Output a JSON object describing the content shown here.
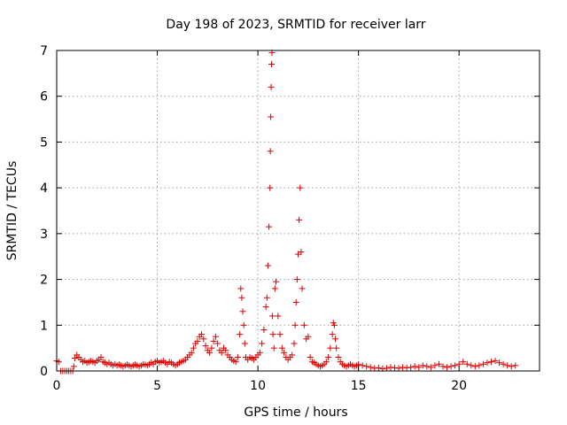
{
  "chart_data": {
    "type": "scatter",
    "title": "Day 198 of 2023, SRMTID for receiver larr",
    "xlabel": "GPS time / hours",
    "ylabel": "SRMTID / TECUs",
    "xlim": [
      0,
      24
    ],
    "ylim": [
      0,
      7
    ],
    "xticks": [
      0,
      5,
      10,
      15,
      20
    ],
    "yticks": [
      0,
      1,
      2,
      3,
      4,
      5,
      6,
      7
    ],
    "grid": true,
    "marker": "+",
    "color": "#dd0000",
    "series": [
      {
        "x": [
          0.0,
          0.1,
          0.2,
          0.3,
          0.4,
          0.5,
          0.6,
          0.7,
          0.8,
          0.85,
          0.9,
          1.0,
          1.1,
          1.2,
          1.3,
          1.4,
          1.5,
          1.6,
          1.7,
          1.8,
          1.9,
          2.0,
          2.1,
          2.2,
          2.3,
          2.4,
          2.5,
          2.6,
          2.7,
          2.8,
          2.9,
          3.0,
          3.1,
          3.2,
          3.3,
          3.4,
          3.5,
          3.6,
          3.7,
          3.8,
          3.9,
          4.0,
          4.1,
          4.2,
          4.3,
          4.4,
          4.5,
          4.6,
          4.7,
          4.8,
          4.9,
          5.0,
          5.1,
          5.2,
          5.3,
          5.4,
          5.5,
          5.6,
          5.7,
          5.8,
          5.9,
          6.0,
          6.1,
          6.2,
          6.3,
          6.4,
          6.5,
          6.6,
          6.7,
          6.8,
          6.9,
          7.0,
          7.1,
          7.2,
          7.3,
          7.4,
          7.5,
          7.6,
          7.7,
          7.8,
          7.9,
          8.0,
          8.1,
          8.2,
          8.3,
          8.4,
          8.5,
          8.6,
          8.7,
          8.8,
          8.9,
          9.0,
          9.1,
          9.15,
          9.2,
          9.25,
          9.3,
          9.35,
          9.4,
          9.5,
          9.6,
          9.7,
          9.8,
          9.9,
          10.0,
          10.1,
          10.2,
          10.3,
          10.4,
          10.45,
          10.5,
          10.55,
          10.6,
          10.62,
          10.64,
          10.66,
          10.68,
          10.7,
          10.72,
          10.75,
          10.8,
          10.85,
          10.9,
          11.0,
          11.1,
          11.2,
          11.3,
          11.4,
          11.5,
          11.6,
          11.7,
          11.8,
          11.85,
          11.9,
          11.95,
          12.0,
          12.05,
          12.1,
          12.15,
          12.2,
          12.3,
          12.4,
          12.5,
          12.6,
          12.7,
          12.8,
          12.9,
          13.0,
          13.1,
          13.2,
          13.3,
          13.4,
          13.5,
          13.6,
          13.7,
          13.75,
          13.8,
          13.85,
          13.9,
          14.0,
          14.1,
          14.2,
          14.3,
          14.4,
          14.5,
          14.6,
          14.7,
          14.8,
          14.9,
          15.0,
          15.2,
          15.4,
          15.6,
          15.8,
          16.0,
          16.2,
          16.4,
          16.6,
          16.8,
          17.0,
          17.2,
          17.4,
          17.6,
          17.8,
          18.0,
          18.2,
          18.4,
          18.6,
          18.8,
          19.0,
          19.2,
          19.4,
          19.6,
          19.8,
          20.0,
          20.2,
          20.4,
          20.6,
          20.8,
          21.0,
          21.2,
          21.4,
          21.6,
          21.8,
          22.0,
          22.2,
          22.4,
          22.6,
          22.8
        ],
        "y": [
          0.22,
          0.2,
          0.0,
          0.0,
          0.0,
          0.0,
          0.0,
          0.0,
          0.0,
          0.1,
          0.28,
          0.35,
          0.3,
          0.25,
          0.2,
          0.22,
          0.18,
          0.2,
          0.22,
          0.2,
          0.18,
          0.22,
          0.25,
          0.3,
          0.2,
          0.18,
          0.15,
          0.18,
          0.15,
          0.12,
          0.15,
          0.12,
          0.14,
          0.12,
          0.1,
          0.12,
          0.14,
          0.12,
          0.1,
          0.12,
          0.14,
          0.12,
          0.1,
          0.12,
          0.15,
          0.14,
          0.12,
          0.15,
          0.18,
          0.15,
          0.2,
          0.22,
          0.18,
          0.2,
          0.22,
          0.18,
          0.15,
          0.2,
          0.18,
          0.15,
          0.12,
          0.15,
          0.18,
          0.2,
          0.22,
          0.25,
          0.3,
          0.35,
          0.4,
          0.5,
          0.6,
          0.65,
          0.75,
          0.8,
          0.7,
          0.55,
          0.45,
          0.4,
          0.5,
          0.65,
          0.75,
          0.6,
          0.45,
          0.4,
          0.5,
          0.45,
          0.35,
          0.3,
          0.25,
          0.22,
          0.2,
          0.3,
          0.8,
          1.8,
          1.6,
          1.3,
          1.0,
          0.6,
          0.3,
          0.25,
          0.3,
          0.28,
          0.25,
          0.3,
          0.35,
          0.4,
          0.6,
          0.9,
          1.4,
          1.6,
          2.3,
          3.15,
          4.0,
          4.8,
          5.55,
          6.2,
          6.7,
          6.95,
          1.2,
          0.8,
          0.5,
          1.8,
          1.95,
          1.2,
          0.8,
          0.5,
          0.4,
          0.3,
          0.25,
          0.3,
          0.35,
          0.6,
          1.0,
          1.5,
          2.0,
          2.55,
          3.3,
          4.0,
          2.6,
          1.8,
          1.0,
          0.7,
          0.75,
          0.3,
          0.2,
          0.18,
          0.15,
          0.12,
          0.1,
          0.12,
          0.15,
          0.2,
          0.3,
          0.5,
          0.8,
          1.05,
          1.0,
          0.7,
          0.5,
          0.3,
          0.2,
          0.15,
          0.12,
          0.1,
          0.12,
          0.15,
          0.12,
          0.1,
          0.12,
          0.14,
          0.12,
          0.1,
          0.08,
          0.06,
          0.07,
          0.05,
          0.06,
          0.08,
          0.07,
          0.06,
          0.08,
          0.07,
          0.08,
          0.1,
          0.08,
          0.12,
          0.1,
          0.08,
          0.12,
          0.15,
          0.1,
          0.08,
          0.1,
          0.12,
          0.15,
          0.2,
          0.15,
          0.12,
          0.1,
          0.12,
          0.15,
          0.18,
          0.2,
          0.22,
          0.18,
          0.15,
          0.12,
          0.1,
          0.12
        ]
      }
    ]
  }
}
